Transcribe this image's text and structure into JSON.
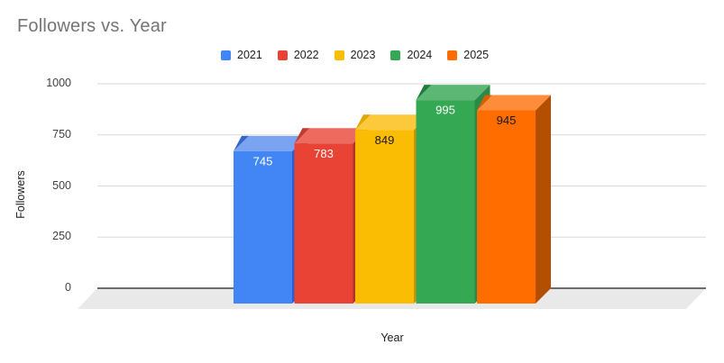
{
  "chart_data": {
    "type": "bar",
    "style": "3d-column",
    "title": "Followers vs. Year",
    "categories": [
      "2021",
      "2022",
      "2023",
      "2024",
      "2025"
    ],
    "values": [
      745,
      783,
      849,
      995,
      945
    ],
    "xlabel": "Year",
    "ylabel": "Followers",
    "ylim": [
      0,
      1000
    ],
    "yticks": [
      0,
      250,
      500,
      750,
      1000
    ],
    "grid": true,
    "legend_position": "top",
    "value_labels_shown": true,
    "bar_colors": [
      {
        "name": "blue",
        "front": "#4285F4",
        "top": "#7AA4F2",
        "side": "#2F5FC4",
        "edge": "#3566CC",
        "value_label": "#FFFFFF"
      },
      {
        "name": "red",
        "front": "#E94335",
        "top": "#EC6B5E",
        "side": "#B53227",
        "edge": "#C43A2D",
        "value_label": "#FFFFFF"
      },
      {
        "name": "yellow",
        "front": "#FBBC04",
        "top": "#FCC93C",
        "side": "#C79502",
        "edge": "#E2A600",
        "value_label": "#1A1A1A"
      },
      {
        "name": "green",
        "front": "#34A853",
        "top": "#5CB674",
        "side": "#2B8A47",
        "edge": "#1F7C3D",
        "value_label": "#FFFFFF"
      },
      {
        "name": "orange",
        "front": "#FF6D00",
        "top": "#FF8C3B",
        "side": "#B44E00",
        "edge": "#DB5F00",
        "value_label": "#1A1A1A"
      }
    ],
    "colors": {
      "grid": "#DADADA",
      "axis_line": "#1C1C1C",
      "floor": "#E9E9E9",
      "tick_text": "#424242",
      "title_text": "#757575",
      "legend_text": "#1F1F1F"
    }
  }
}
